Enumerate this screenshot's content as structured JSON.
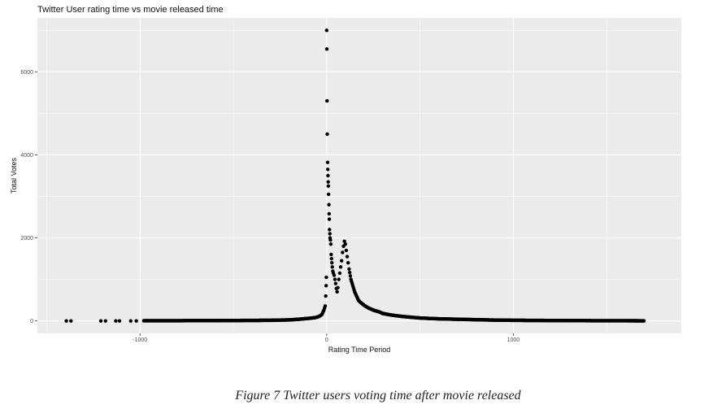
{
  "figure": {
    "caption": "Figure 7 Twitter users voting time after movie released"
  },
  "chart_data": {
    "type": "scatter",
    "title": "Twitter User rating time vs movie released time",
    "xlabel": "Rating Time Period",
    "ylabel": "Total Votes",
    "xlim": [
      -1550,
      1900
    ],
    "ylim": [
      -300,
      7300
    ],
    "x_ticks": [
      -1000,
      0,
      1000
    ],
    "x_tick_labels": [
      "-1000",
      "0",
      "1000"
    ],
    "y_ticks": [
      0,
      2000,
      4000,
      6000
    ],
    "y_tick_labels": [
      "0",
      "2000",
      "4000",
      "6000"
    ],
    "grid": true,
    "legend": "none",
    "background_color": "#ebebeb",
    "grid_color": "#ffffff",
    "point_color": "#000000",
    "series": [
      {
        "values": [
          [
            -1395,
            0
          ],
          [
            -1370,
            0
          ],
          [
            -1210,
            0
          ],
          [
            -1185,
            0
          ],
          [
            -1130,
            0
          ],
          [
            -1110,
            0
          ],
          [
            -1050,
            0
          ],
          [
            -1020,
            0
          ],
          [
            -980,
            5
          ],
          [
            -900,
            5
          ],
          [
            -800,
            5
          ],
          [
            -700,
            8
          ],
          [
            -600,
            8
          ],
          [
            -500,
            10
          ],
          [
            -400,
            12
          ],
          [
            -300,
            15
          ],
          [
            -200,
            25
          ],
          [
            -150,
            40
          ],
          [
            -100,
            60
          ],
          [
            -60,
            80
          ],
          [
            -40,
            110
          ],
          [
            -25,
            160
          ],
          [
            -15,
            260
          ],
          [
            -8,
            360
          ],
          [
            -5,
            600
          ],
          [
            -3,
            850
          ],
          [
            -2,
            1050
          ],
          [
            0,
            7000
          ],
          [
            1,
            6550
          ],
          [
            2,
            5300
          ],
          [
            3,
            4500
          ],
          [
            5,
            3820
          ],
          [
            6,
            3650
          ],
          [
            7,
            3500
          ],
          [
            8,
            3350
          ],
          [
            9,
            3250
          ],
          [
            10,
            3050
          ],
          [
            12,
            2800
          ],
          [
            13,
            2580
          ],
          [
            14,
            2450
          ],
          [
            15,
            2200
          ],
          [
            17,
            2100
          ],
          [
            18,
            2000
          ],
          [
            20,
            1950
          ],
          [
            22,
            1850
          ],
          [
            24,
            1600
          ],
          [
            26,
            1500
          ],
          [
            28,
            1400
          ],
          [
            30,
            1300
          ],
          [
            33,
            1200
          ],
          [
            36,
            1150
          ],
          [
            40,
            1100
          ],
          [
            44,
            1000
          ],
          [
            48,
            900
          ],
          [
            52,
            780
          ],
          [
            56,
            700
          ],
          [
            60,
            800
          ],
          [
            65,
            1000
          ],
          [
            70,
            1150
          ],
          [
            75,
            1300
          ],
          [
            80,
            1450
          ],
          [
            85,
            1650
          ],
          [
            90,
            1800
          ],
          [
            95,
            1920
          ],
          [
            100,
            1850
          ],
          [
            105,
            1700
          ],
          [
            110,
            1550
          ],
          [
            115,
            1400
          ],
          [
            120,
            1250
          ],
          [
            130,
            1000
          ],
          [
            140,
            850
          ],
          [
            150,
            700
          ],
          [
            160,
            600
          ],
          [
            170,
            500
          ],
          [
            180,
            450
          ],
          [
            200,
            380
          ],
          [
            220,
            320
          ],
          [
            250,
            260
          ],
          [
            280,
            220
          ],
          [
            300,
            180
          ],
          [
            350,
            140
          ],
          [
            400,
            110
          ],
          [
            450,
            90
          ],
          [
            500,
            70
          ],
          [
            600,
            50
          ],
          [
            700,
            40
          ],
          [
            800,
            30
          ],
          [
            900,
            20
          ],
          [
            1000,
            15
          ],
          [
            1100,
            12
          ],
          [
            1200,
            10
          ],
          [
            1300,
            8
          ],
          [
            1400,
            6
          ],
          [
            1500,
            5
          ],
          [
            1600,
            4
          ],
          [
            1700,
            3
          ]
        ]
      }
    ]
  }
}
